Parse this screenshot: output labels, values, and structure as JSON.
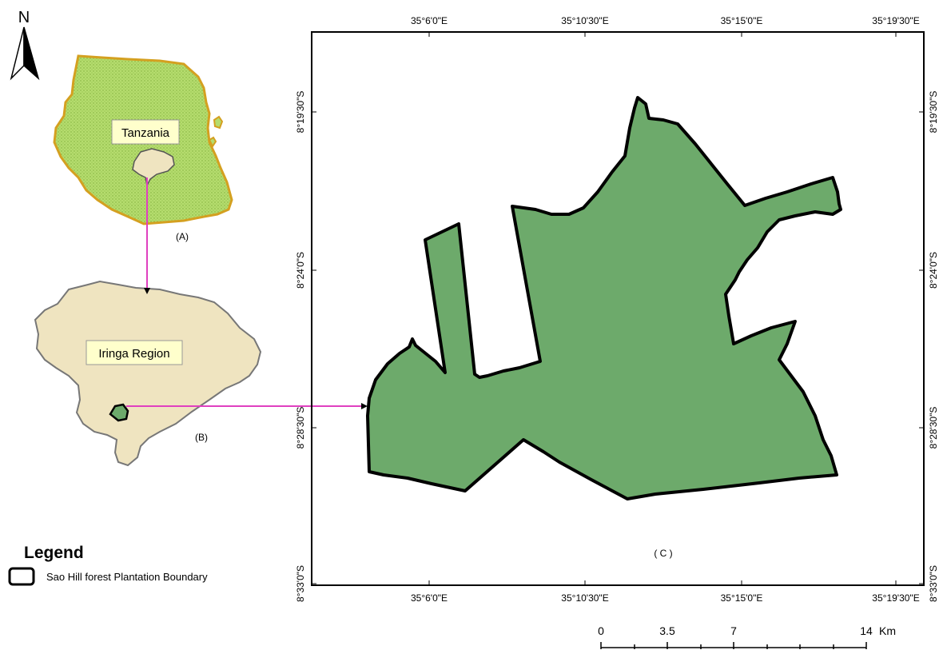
{
  "north_arrow": {
    "label": "N"
  },
  "inset_a": {
    "name_label": "Tanzania",
    "panel_label": "(A)",
    "fill_color": "#b5dc6e",
    "border_color": "#d4a020"
  },
  "inset_b": {
    "name_label": "Iringa Region",
    "panel_label": "(B)",
    "fill_color": "#efe4c0"
  },
  "main_map": {
    "panel_label": "( C )",
    "fill_color": "#6daa6b",
    "top_ticks": [
      "35°6'0\"E",
      "35°10'30\"E",
      "35°15'0\"E",
      "35°19'30\"E"
    ],
    "bottom_ticks": [
      "35°6'0\"E",
      "35°10'30\"E",
      "35°15'0\"E",
      "35°19'30\"E"
    ],
    "left_ticks": [
      "8°19'30\"S",
      "8°24'0\"S",
      "8°28'30\"S",
      "8°33'0\"S"
    ],
    "right_ticks": [
      "8°19'30\"S",
      "8°24'0\"S",
      "8°28'30\"S",
      "8°33'0\"S"
    ]
  },
  "connector_color": "#e040c0",
  "legend": {
    "title": "Legend",
    "items": [
      {
        "label": "Sao Hill forest Plantation Boundary"
      }
    ]
  },
  "scale_bar": {
    "labels": [
      "0",
      "3.5",
      "7",
      "14"
    ],
    "unit": "Km"
  }
}
